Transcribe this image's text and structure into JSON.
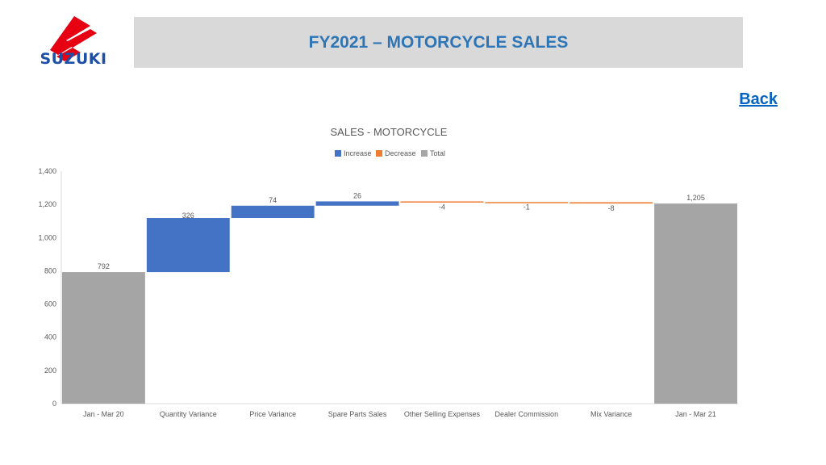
{
  "header": {
    "logo_text": "SUZUKI",
    "title": "FY2021 – MOTORCYCLE SALES",
    "back_label": "Back"
  },
  "colors": {
    "increase": "#4472c4",
    "decrease": "#ed7d31",
    "total": "#a5a5a5",
    "title_bar": "#d9d9d9",
    "title_text": "#2e75b6",
    "brand_red": "#e60012",
    "brand_blue": "#1e4fa6"
  },
  "chart_data": {
    "type": "bar",
    "subtype": "waterfall",
    "title": "SALES - MOTORCYCLE",
    "legend": [
      "Increase",
      "Decrease",
      "Total"
    ],
    "legend_position": "top",
    "categories": [
      "Jan - Mar 20",
      "Quantity Variance",
      "Price Variance",
      "Spare Parts Sales",
      "Other Selling Expenses",
      "Dealer Commission",
      "Mix Variance",
      "Jan - Mar 21"
    ],
    "values": [
      792,
      326,
      74,
      26,
      -4,
      -1,
      -8,
      1205
    ],
    "kinds": [
      "total",
      "increase",
      "increase",
      "increase",
      "decrease",
      "decrease",
      "decrease",
      "total"
    ],
    "data_labels": [
      "792",
      "326",
      "74",
      "26",
      "-4",
      "-1",
      "-8",
      "1,205"
    ],
    "ylim": [
      0,
      1400
    ],
    "yticks": [
      0,
      200,
      400,
      600,
      800,
      1000,
      1200,
      1400
    ],
    "ytick_labels": [
      "0",
      "200",
      "400",
      "600",
      "800",
      "1,000",
      "1,200",
      "1,400"
    ],
    "grid": false
  }
}
